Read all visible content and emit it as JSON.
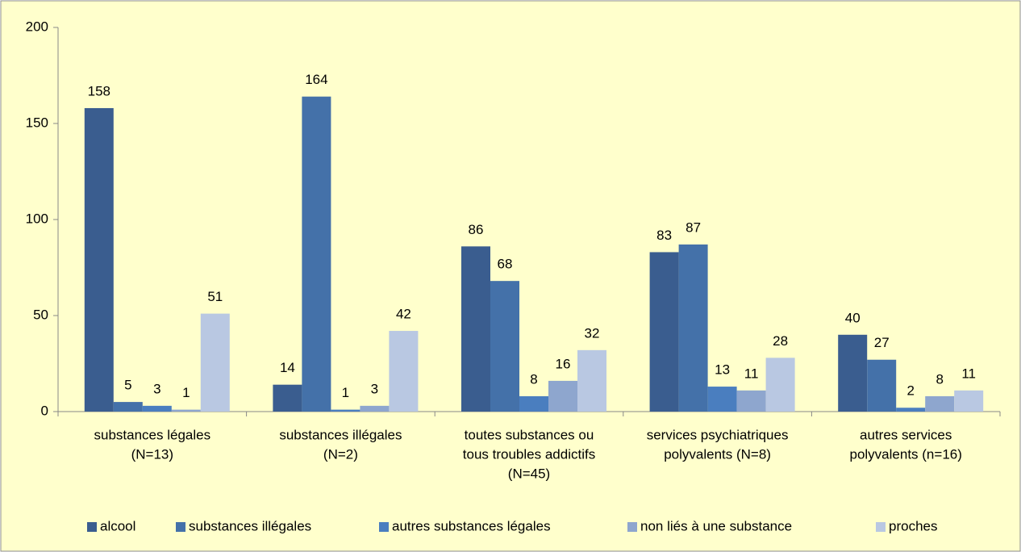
{
  "chart_data": {
    "type": "bar",
    "categories": [
      [
        "substances légales",
        "(N=13)"
      ],
      [
        "substances illégales",
        "(N=2)"
      ],
      [
        "toutes substances ou",
        "tous troubles addictifs",
        "(N=45)"
      ],
      [
        "services psychiatriques",
        "polyvalents (N=8)"
      ],
      [
        "autres services",
        "polyvalents (n=16)"
      ]
    ],
    "series": [
      {
        "name": "alcool",
        "color": "#3A5D8F",
        "values": [
          158,
          14,
          86,
          83,
          40
        ]
      },
      {
        "name": "substances illégales",
        "color": "#4471A9",
        "values": [
          5,
          164,
          68,
          87,
          27
        ]
      },
      {
        "name": "autres substances légales",
        "color": "#4A7EBF",
        "values": [
          3,
          1,
          8,
          13,
          2
        ]
      },
      {
        "name": "non liés à une substance",
        "color": "#8EA6CE",
        "values": [
          1,
          3,
          16,
          11,
          8
        ]
      },
      {
        "name": "proches",
        "color": "#B9C8E2",
        "values": [
          51,
          42,
          32,
          28,
          11
        ]
      }
    ],
    "ylim": [
      0,
      200
    ],
    "yticks": [
      0,
      50,
      100,
      150,
      200
    ],
    "grid": false,
    "legend": "bottom"
  }
}
